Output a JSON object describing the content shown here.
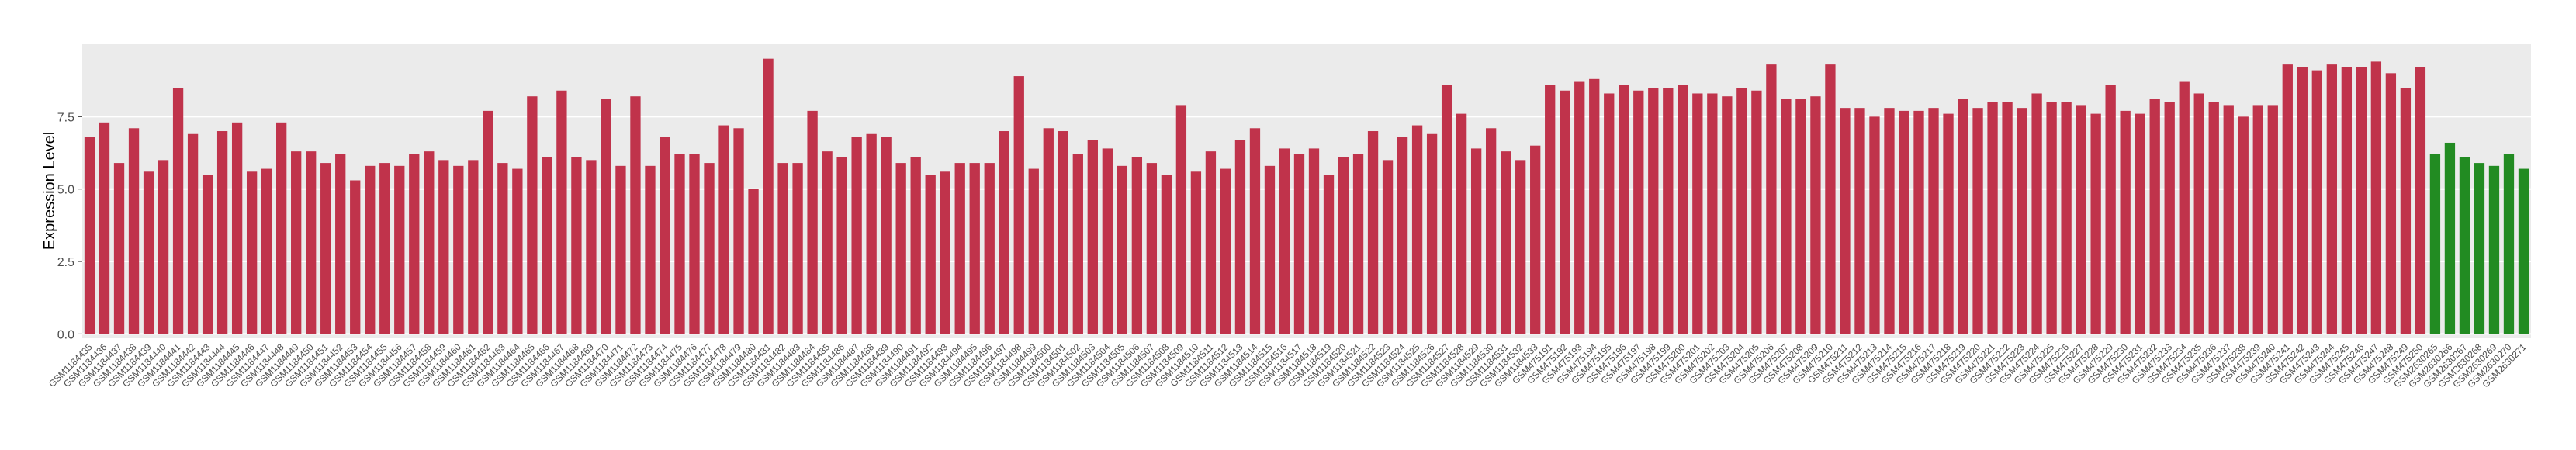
{
  "chart_data": {
    "type": "bar",
    "y_label": "Expression Level",
    "categories": [
      "GSM1184435",
      "GSM1184436",
      "GSM1184437",
      "GSM1184438",
      "GSM1184439",
      "GSM1184440",
      "GSM1184441",
      "GSM1184442",
      "GSM1184443",
      "GSM1184444",
      "GSM1184445",
      "GSM1184446",
      "GSM1184447",
      "GSM1184448",
      "GSM1184449",
      "GSM1184450",
      "GSM1184451",
      "GSM1184452",
      "GSM1184453",
      "GSM1184454",
      "GSM1184455",
      "GSM1184456",
      "GSM1184457",
      "GSM1184458",
      "GSM1184459",
      "GSM1184460",
      "GSM1184461",
      "GSM1184462",
      "GSM1184463",
      "GSM1184464",
      "GSM1184465",
      "GSM1184466",
      "GSM1184467",
      "GSM1184468",
      "GSM1184469",
      "GSM1184470",
      "GSM1184471",
      "GSM1184472",
      "GSM1184473",
      "GSM1184474",
      "GSM1184475",
      "GSM1184476",
      "GSM1184477",
      "GSM1184478",
      "GSM1184479",
      "GSM1184480",
      "GSM1184481",
      "GSM1184482",
      "GSM1184483",
      "GSM1184484",
      "GSM1184485",
      "GSM1184486",
      "GSM1184487",
      "GSM1184488",
      "GSM1184489",
      "GSM1184490",
      "GSM1184491",
      "GSM1184492",
      "GSM1184493",
      "GSM1184494",
      "GSM1184495",
      "GSM1184496",
      "GSM1184497",
      "GSM1184498",
      "GSM1184499",
      "GSM1184500",
      "GSM1184501",
      "GSM1184502",
      "GSM1184503",
      "GSM1184504",
      "GSM1184505",
      "GSM1184506",
      "GSM1184507",
      "GSM1184508",
      "GSM1184509",
      "GSM1184510",
      "GSM1184511",
      "GSM1184512",
      "GSM1184513",
      "GSM1184514",
      "GSM1184515",
      "GSM1184516",
      "GSM1184517",
      "GSM1184518",
      "GSM1184519",
      "GSM1184520",
      "GSM1184521",
      "GSM1184522",
      "GSM1184523",
      "GSM1184524",
      "GSM1184525",
      "GSM1184526",
      "GSM1184527",
      "GSM1184528",
      "GSM1184529",
      "GSM1184530",
      "GSM1184531",
      "GSM1184532",
      "GSM1184533",
      "GSM475191",
      "GSM475192",
      "GSM475193",
      "GSM475194",
      "GSM475195",
      "GSM475196",
      "GSM475197",
      "GSM475198",
      "GSM475199",
      "GSM475200",
      "GSM475201",
      "GSM475202",
      "GSM475203",
      "GSM475204",
      "GSM475205",
      "GSM475206",
      "GSM475207",
      "GSM475208",
      "GSM475209",
      "GSM475210",
      "GSM475211",
      "GSM475212",
      "GSM475213",
      "GSM475214",
      "GSM475215",
      "GSM475216",
      "GSM475217",
      "GSM475218",
      "GSM475219",
      "GSM475220",
      "GSM475221",
      "GSM475222",
      "GSM475223",
      "GSM475224",
      "GSM475225",
      "GSM475226",
      "GSM475227",
      "GSM475228",
      "GSM475229",
      "GSM475230",
      "GSM475231",
      "GSM475232",
      "GSM475233",
      "GSM475234",
      "GSM475235",
      "GSM475236",
      "GSM475237",
      "GSM475238",
      "GSM475239",
      "GSM475240",
      "GSM475241",
      "GSM475242",
      "GSM475243",
      "GSM475244",
      "GSM475245",
      "GSM475246",
      "GSM475247",
      "GSM475248",
      "GSM475249",
      "GSM475250",
      "GSM2630265",
      "GSM2630266",
      "GSM2630267",
      "GSM2630268",
      "GSM2630269",
      "GSM2630270",
      "GSM2630271"
    ],
    "values": [
      6.8,
      7.3,
      5.9,
      7.1,
      5.6,
      6.0,
      8.5,
      6.9,
      5.5,
      7.0,
      7.3,
      5.6,
      5.7,
      7.3,
      6.3,
      6.3,
      5.9,
      6.2,
      5.3,
      5.8,
      5.9,
      5.8,
      6.2,
      6.3,
      6.0,
      5.8,
      6.0,
      7.7,
      5.9,
      5.7,
      8.2,
      6.1,
      8.4,
      6.1,
      6.0,
      8.1,
      5.8,
      8.2,
      5.8,
      6.8,
      6.2,
      6.2,
      5.9,
      7.2,
      7.1,
      5.0,
      9.5,
      5.9,
      5.9,
      7.7,
      6.3,
      6.1,
      6.8,
      6.9,
      6.8,
      5.9,
      6.1,
      5.5,
      5.6,
      5.9,
      5.9,
      5.9,
      7.0,
      8.9,
      5.7,
      7.1,
      7.0,
      6.2,
      6.7,
      6.4,
      5.8,
      6.1,
      5.9,
      5.5,
      7.9,
      5.6,
      6.3,
      5.7,
      6.7,
      7.1,
      5.8,
      6.4,
      6.2,
      6.4,
      5.5,
      6.1,
      6.2,
      7.0,
      6.0,
      6.8,
      7.2,
      6.9,
      8.6,
      7.6,
      6.4,
      7.1,
      6.3,
      6.0,
      6.5,
      8.6,
      8.4,
      8.7,
      8.8,
      8.3,
      8.6,
      8.4,
      8.5,
      8.5,
      8.6,
      8.3,
      8.3,
      8.2,
      8.5,
      8.4,
      9.3,
      8.1,
      8.1,
      8.2,
      9.3,
      7.8,
      7.8,
      7.5,
      7.8,
      7.7,
      7.7,
      7.8,
      7.6,
      8.1,
      7.8,
      8.0,
      8.0,
      7.8,
      8.3,
      8.0,
      8.0,
      7.9,
      7.6,
      8.6,
      7.7,
      7.6,
      8.1,
      8.0,
      8.7,
      8.3,
      8.0,
      7.9,
      7.5,
      7.9,
      7.9,
      9.3,
      9.2,
      9.1,
      9.3,
      9.2,
      9.2,
      9.4,
      9.0,
      8.5,
      9.2,
      6.2,
      6.6,
      6.1,
      5.9,
      5.8,
      6.2,
      5.7
    ],
    "colors": [
      "#c0334b",
      "#c0334b",
      "#c0334b",
      "#c0334b",
      "#c0334b",
      "#c0334b",
      "#c0334b",
      "#c0334b",
      "#c0334b",
      "#c0334b",
      "#c0334b",
      "#c0334b",
      "#c0334b",
      "#c0334b",
      "#c0334b",
      "#c0334b",
      "#c0334b",
      "#c0334b",
      "#c0334b",
      "#c0334b",
      "#c0334b",
      "#c0334b",
      "#c0334b",
      "#c0334b",
      "#c0334b",
      "#c0334b",
      "#c0334b",
      "#c0334b",
      "#c0334b",
      "#c0334b",
      "#c0334b",
      "#c0334b",
      "#c0334b",
      "#c0334b",
      "#c0334b",
      "#c0334b",
      "#c0334b",
      "#c0334b",
      "#c0334b",
      "#c0334b",
      "#c0334b",
      "#c0334b",
      "#c0334b",
      "#c0334b",
      "#c0334b",
      "#c0334b",
      "#c0334b",
      "#c0334b",
      "#c0334b",
      "#c0334b",
      "#c0334b",
      "#c0334b",
      "#c0334b",
      "#c0334b",
      "#c0334b",
      "#c0334b",
      "#c0334b",
      "#c0334b",
      "#c0334b",
      "#c0334b",
      "#c0334b",
      "#c0334b",
      "#c0334b",
      "#c0334b",
      "#c0334b",
      "#c0334b",
      "#c0334b",
      "#c0334b",
      "#c0334b",
      "#c0334b",
      "#c0334b",
      "#c0334b",
      "#c0334b",
      "#c0334b",
      "#c0334b",
      "#c0334b",
      "#c0334b",
      "#c0334b",
      "#c0334b",
      "#c0334b",
      "#c0334b",
      "#c0334b",
      "#c0334b",
      "#c0334b",
      "#c0334b",
      "#c0334b",
      "#c0334b",
      "#c0334b",
      "#c0334b",
      "#c0334b",
      "#c0334b",
      "#c0334b",
      "#c0334b",
      "#c0334b",
      "#c0334b",
      "#c0334b",
      "#c0334b",
      "#c0334b",
      "#c0334b",
      "#c0334b",
      "#c0334b",
      "#c0334b",
      "#c0334b",
      "#c0334b",
      "#c0334b",
      "#c0334b",
      "#c0334b",
      "#c0334b",
      "#c0334b",
      "#c0334b",
      "#c0334b",
      "#c0334b",
      "#c0334b",
      "#c0334b",
      "#c0334b",
      "#c0334b",
      "#c0334b",
      "#c0334b",
      "#c0334b",
      "#c0334b",
      "#c0334b",
      "#c0334b",
      "#c0334b",
      "#c0334b",
      "#c0334b",
      "#c0334b",
      "#c0334b",
      "#c0334b",
      "#c0334b",
      "#c0334b",
      "#c0334b",
      "#c0334b",
      "#c0334b",
      "#c0334b",
      "#c0334b",
      "#c0334b",
      "#c0334b",
      "#c0334b",
      "#c0334b",
      "#c0334b",
      "#c0334b",
      "#c0334b",
      "#c0334b",
      "#c0334b",
      "#c0334b",
      "#c0334b",
      "#c0334b",
      "#c0334b",
      "#c0334b",
      "#c0334b",
      "#c0334b",
      "#c0334b",
      "#c0334b",
      "#c0334b",
      "#c0334b",
      "#c0334b",
      "#c0334b",
      "#c0334b",
      "#c0334b",
      "#228b22",
      "#228b22",
      "#228b22",
      "#228b22",
      "#228b22",
      "#228b22",
      "#228b22"
    ],
    "ylim": [
      -0.15,
      10
    ],
    "yticks": [
      {
        "value": 0,
        "label": "0.0"
      },
      {
        "value": 2.5,
        "label": "2.5"
      },
      {
        "value": 5,
        "label": "5.0"
      },
      {
        "value": 7.5,
        "label": "7.5"
      }
    ],
    "grid": true
  }
}
